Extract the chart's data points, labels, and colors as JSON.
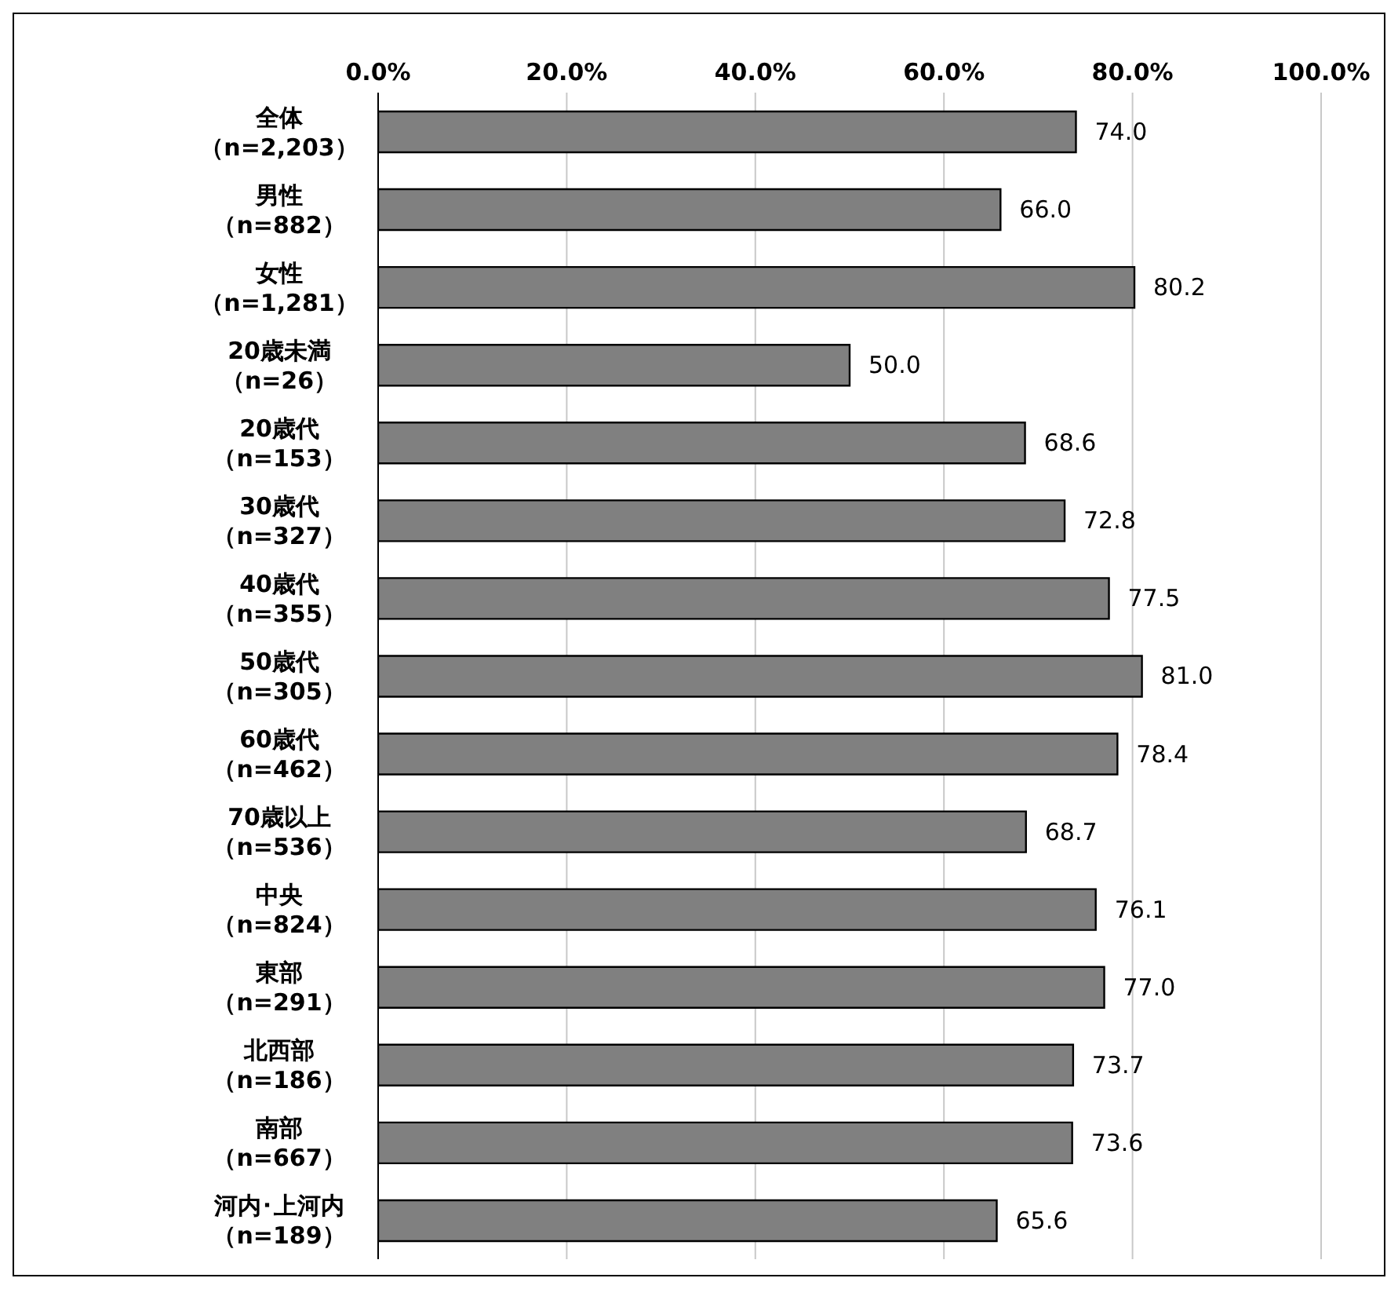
{
  "chart_data": {
    "type": "bar",
    "orientation": "horizontal",
    "categories": [
      "全体（n=2,203）",
      "男性（n=882）",
      "女性（n=1,281）",
      "20歳未満（n=26）",
      "20歳代（n=153）",
      "30歳代（n=327）",
      "40歳代（n=355）",
      "50歳代（n=305）",
      "60歳代（n=462）",
      "70歳以上（n=536）",
      "中央（n=824）",
      "東部（n=291）",
      "北西部（n=186）",
      "南部（n=667）",
      "河内･上河内（n=189）"
    ],
    "values": [
      74.0,
      66.0,
      80.2,
      50.0,
      68.6,
      72.8,
      77.5,
      81.0,
      78.4,
      68.7,
      76.1,
      77.0,
      73.7,
      73.6,
      65.6
    ],
    "value_labels": [
      "74.0",
      "66.0",
      "80.2",
      "50.0",
      "68.6",
      "72.8",
      "77.5",
      "81.0",
      "78.4",
      "68.7",
      "76.1",
      "77.0",
      "73.7",
      "73.6",
      "65.6"
    ],
    "color": "#808080",
    "xlim": [
      0,
      100
    ],
    "xticks": [
      {
        "value": 0,
        "label": "0.0%"
      },
      {
        "value": 20,
        "label": "20.0%"
      },
      {
        "value": 40,
        "label": "40.0%"
      },
      {
        "value": 60,
        "label": "60.0%"
      },
      {
        "value": 80,
        "label": "80.0%"
      },
      {
        "value": 100,
        "label": "100.0%"
      }
    ],
    "grid": "x",
    "legend": false
  }
}
